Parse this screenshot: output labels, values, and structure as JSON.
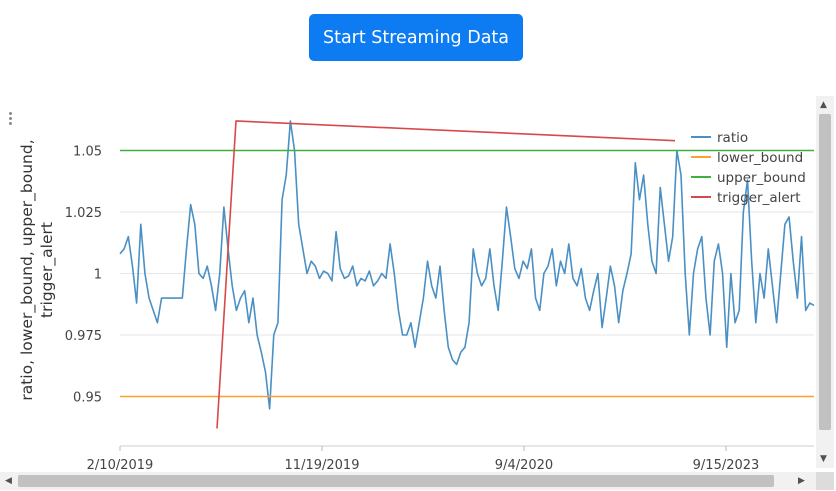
{
  "button": {
    "label": "Start Streaming Data"
  },
  "colors": {
    "ratio": "#4a90c4",
    "lower_bound": "#ff9f2f",
    "upper_bound": "#40b040",
    "trigger_alert": "#d94848",
    "button": "#0d7cf2"
  },
  "chart_data": {
    "type": "line",
    "title": "",
    "xlabel": "",
    "ylabel": "ratio, lower_bound, upper_bound,\ntrigger_alert",
    "x_ticks": [
      "2/10/2019",
      "11/19/2019",
      "9/4/2020",
      "9/15/2023"
    ],
    "y_ticks": [
      0.95,
      0.975,
      1,
      1.025,
      1.05
    ],
    "ylim": [
      0.94,
      1.062
    ],
    "grid": "horizontal",
    "legend": "top-right",
    "series": [
      {
        "name": "ratio",
        "values": [
          1.008,
          1.01,
          1.015,
          1.003,
          0.988,
          1.02,
          1.0,
          0.99,
          0.985,
          0.98,
          0.99,
          0.99,
          0.99,
          0.99,
          0.99,
          0.99,
          1.01,
          1.028,
          1.02,
          1.0,
          0.998,
          1.003,
          0.995,
          0.985,
          1.0,
          1.027,
          1.01,
          0.995,
          0.985,
          0.99,
          0.993,
          0.98,
          0.99,
          0.975,
          0.968,
          0.96,
          0.945,
          0.975,
          0.98,
          1.03,
          1.04,
          1.062,
          1.05,
          1.02,
          1.01,
          1.0,
          1.005,
          1.003,
          0.998,
          1.001,
          1.0,
          0.997,
          1.017,
          1.002,
          0.998,
          0.999,
          1.003,
          0.995,
          0.998,
          0.997,
          1.001,
          0.995,
          0.997,
          1.0,
          0.998,
          1.012,
          1.0,
          0.985,
          0.975,
          0.975,
          0.98,
          0.97,
          0.98,
          0.99,
          1.005,
          0.995,
          0.99,
          1.003,
          0.985,
          0.97,
          0.965,
          0.963,
          0.968,
          0.97,
          0.98,
          1.01,
          1.0,
          0.995,
          0.998,
          1.01,
          0.995,
          0.985,
          1.005,
          1.027,
          1.015,
          1.002,
          0.998,
          1.005,
          1.002,
          1.01,
          0.99,
          0.985,
          1.0,
          1.003,
          1.01,
          0.995,
          1.005,
          1.0,
          1.012,
          0.998,
          0.995,
          1.002,
          0.99,
          0.985,
          0.993,
          1.0,
          0.978,
          0.99,
          1.003,
          0.995,
          0.98,
          0.993,
          1.0,
          1.008,
          1.045,
          1.03,
          1.04,
          1.02,
          1.005,
          1.0,
          1.035,
          1.02,
          1.005,
          1.015,
          1.05,
          1.04,
          1.0,
          0.975,
          1.0,
          1.01,
          1.015,
          0.99,
          0.975,
          1.005,
          1.012,
          1.0,
          0.97,
          1.0,
          0.98,
          0.985,
          1.025,
          1.038,
          1.005,
          0.98,
          1.0,
          0.99,
          1.01,
          0.995,
          0.98,
          1.0,
          1.02,
          1.023,
          1.005,
          0.99,
          1.015,
          0.985,
          0.988,
          0.987
        ]
      },
      {
        "name": "lower_bound",
        "values": [
          0.95,
          0.95
        ]
      },
      {
        "name": "upper_bound",
        "values": [
          1.05,
          1.05
        ]
      },
      {
        "name": "trigger_alert",
        "values": [
          0.937,
          1.062,
          1.054
        ]
      }
    ]
  }
}
